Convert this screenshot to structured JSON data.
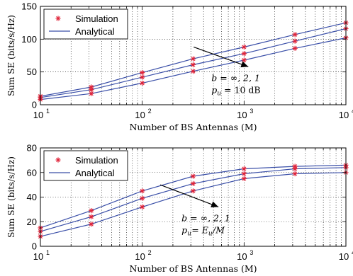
{
  "chart_data": [
    {
      "type": "line",
      "x_scale": "log",
      "xlim": [
        10,
        10000
      ],
      "ylim": [
        0,
        150
      ],
      "xticks": [
        10,
        100,
        1000,
        10000
      ],
      "xtick_labels": [
        [
          "10",
          "1"
        ],
        [
          "10",
          "2"
        ],
        [
          "10",
          "3"
        ],
        [
          "10",
          "4"
        ]
      ],
      "yticks": [
        0,
        50,
        100,
        150
      ],
      "xlabel": "Number of BS Antennas (M)",
      "ylabel": "Sum SE (bits/s/Hz)",
      "grid": true,
      "legend": {
        "placement": "top-left",
        "entries": [
          "Simulation",
          "Analytical"
        ]
      },
      "annotation": {
        "line1": "b = ∞, 2, 1",
        "line2": "p_u = 10 dB",
        "arrow_from": [
          320,
          88
        ],
        "arrow_to": [
          1100,
          58
        ]
      },
      "x": [
        10,
        31.6,
        100,
        316,
        1000,
        3162,
        10000
      ],
      "series": [
        {
          "values": [
            13,
            27,
            49,
            70,
            88,
            107,
            125
          ]
        },
        {
          "values": [
            11,
            23,
            42,
            61,
            78,
            97,
            116
          ]
        },
        {
          "values": [
            8,
            17,
            33,
            51,
            68,
            86,
            102
          ]
        }
      ]
    },
    {
      "type": "line",
      "x_scale": "log",
      "xlim": [
        10,
        10000
      ],
      "ylim": [
        0,
        80
      ],
      "xticks": [
        10,
        100,
        1000,
        10000
      ],
      "xtick_labels": [
        [
          "10",
          "1"
        ],
        [
          "10",
          "2"
        ],
        [
          "10",
          "3"
        ],
        [
          "10",
          "4"
        ]
      ],
      "yticks": [
        0,
        20,
        40,
        60,
        80
      ],
      "xlabel": "Number of BS Antennas (M)",
      "ylabel": "Sum SE (bits/s/Hz)",
      "grid": true,
      "legend": {
        "placement": "top-left",
        "entries": [
          "Simulation",
          "Analytical"
        ]
      },
      "annotation": {
        "line1": "b = ∞, 2, 1",
        "line2": "p_u = E_u/M",
        "arrow_from": [
          150,
          50
        ],
        "arrow_to": [
          560,
          32
        ]
      },
      "x": [
        10,
        31.6,
        100,
        316,
        1000,
        3162,
        10000
      ],
      "series": [
        {
          "values": [
            15,
            29,
            45,
            57,
            63,
            65,
            66
          ]
        },
        {
          "values": [
            12,
            24,
            39,
            51,
            59,
            63,
            64
          ]
        },
        {
          "values": [
            8,
            18,
            32,
            45,
            55,
            59,
            60
          ]
        }
      ]
    }
  ]
}
